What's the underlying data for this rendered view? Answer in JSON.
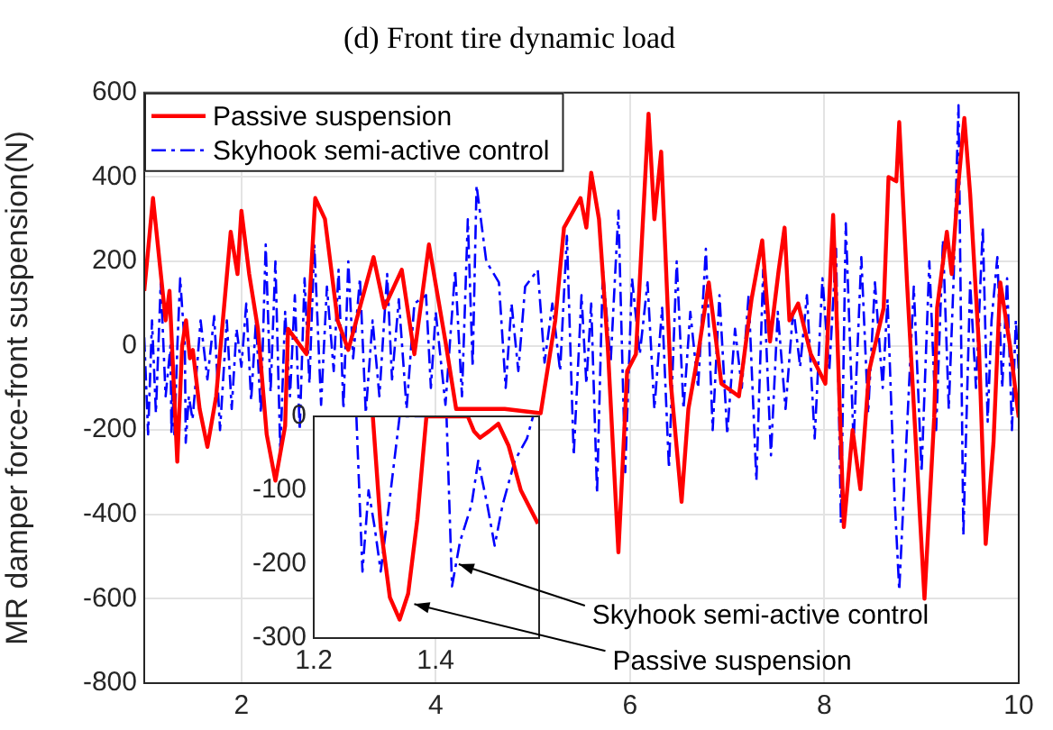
{
  "chart_data": [
    {
      "type": "line",
      "title": "(d) Front tire dynamic load",
      "ylabel": "MR damper force-front suspension(N)",
      "xlim": [
        1,
        10
      ],
      "ylim": [
        -800,
        600
      ],
      "xticks": [
        2,
        4,
        6,
        8,
        10
      ],
      "yticks": [
        -800,
        -600,
        -400,
        -200,
        0,
        200,
        400,
        600
      ],
      "grid": true,
      "legend": "top left",
      "series": [
        {
          "name": "Passive suspension",
          "color": "#ff0000",
          "line_style": "solid",
          "x": [
            1.0,
            1.09,
            1.22,
            1.26,
            1.34,
            1.39,
            1.43,
            1.47,
            1.5,
            1.57,
            1.65,
            1.74,
            1.89,
            1.96,
            2.0,
            2.08,
            2.17,
            2.26,
            2.35,
            2.45,
            2.48,
            2.67,
            2.76,
            2.86,
            2.99,
            3.1,
            3.23,
            3.36,
            3.47,
            3.65,
            3.78,
            3.93,
            4.1,
            4.21,
            4.43,
            4.71,
            5.08,
            5.23,
            5.32,
            5.49,
            5.55,
            5.6,
            5.68,
            5.77,
            5.88,
            5.97,
            6.06,
            6.19,
            6.25,
            6.32,
            6.42,
            6.53,
            6.6,
            6.7,
            6.81,
            6.94,
            7.12,
            7.25,
            7.36,
            7.44,
            7.53,
            7.59,
            7.64,
            7.73,
            7.86,
            8.01,
            8.09,
            8.2,
            8.29,
            8.37,
            8.46,
            8.61,
            8.66,
            8.74,
            8.77,
            8.85,
            9.03,
            9.13,
            9.16,
            9.26,
            9.31,
            9.37,
            9.44,
            9.5,
            9.59,
            9.66,
            9.74,
            9.81,
            9.91,
            10.0
          ],
          "values": [
            130,
            350,
            60,
            130,
            -275,
            0,
            60,
            -30,
            -10,
            -150,
            -240,
            -120,
            270,
            170,
            320,
            170,
            40,
            -210,
            -320,
            -190,
            40,
            -20,
            350,
            300,
            60,
            -10,
            100,
            210,
            90,
            180,
            -20,
            240,
            10,
            -150,
            null,
            -150,
            -160,
            60,
            280,
            350,
            280,
            410,
            300,
            0,
            -490,
            -60,
            -20,
            550,
            300,
            460,
            -90,
            -370,
            -150,
            -20,
            150,
            -90,
            -120,
            110,
            250,
            10,
            180,
            280,
            60,
            100,
            -20,
            -90,
            310,
            -430,
            -200,
            -340,
            -60,
            90,
            400,
            390,
            530,
            150,
            -600,
            -170,
            90,
            270,
            170,
            360,
            540,
            360,
            0,
            -470,
            -230,
            150,
            0,
            -170
          ]
        },
        {
          "name": "Skyhook semi-active control",
          "color": "#0000ff",
          "line_style": "dashed",
          "x": [
            1.0,
            1.04,
            1.08,
            1.12,
            1.17,
            1.22,
            1.27,
            1.28,
            1.29,
            1.31,
            1.341,
            1.37,
            1.39,
            1.418,
            1.427,
            1.459,
            1.497,
            1.55,
            1.58,
            1.65,
            1.72,
            1.78,
            1.85,
            1.9,
            1.95,
            2.0,
            2.05,
            2.1,
            2.15,
            2.2,
            2.25,
            2.3,
            2.35,
            2.4,
            2.45,
            2.5,
            2.55,
            2.6,
            2.65,
            2.7,
            2.75,
            2.82,
            2.88,
            2.95,
            3.0,
            3.05,
            3.1,
            3.15,
            3.22,
            3.28,
            3.35,
            3.42,
            3.5,
            3.55,
            3.62,
            3.7,
            3.78,
            3.85,
            3.9,
            3.95,
            4.0,
            4.1,
            4.2,
            4.27,
            4.33,
            4.38,
            4.42,
            4.47,
            4.52,
            4.58,
            4.65,
            4.72,
            4.78,
            4.85,
            4.92,
            5.0,
            5.05,
            5.12,
            5.2,
            5.28,
            5.35,
            5.42,
            5.5,
            5.55,
            5.6,
            5.66,
            5.72,
            5.8,
            5.88,
            5.95,
            6.02,
            6.1,
            6.18,
            6.25,
            6.33,
            6.4,
            6.48,
            6.55,
            6.62,
            6.7,
            6.78,
            6.85,
            6.92,
            7.0,
            7.08,
            7.15,
            7.22,
            7.3,
            7.37,
            7.45,
            7.52,
            7.6,
            7.68,
            7.75,
            7.82,
            7.9,
            7.98,
            8.05,
            8.12,
            8.17,
            8.22,
            8.3,
            8.38,
            8.45,
            8.52,
            8.6,
            8.65,
            8.72,
            8.77,
            8.92,
            9.0,
            9.08,
            9.15,
            9.22,
            9.28,
            9.33,
            9.38,
            9.43,
            9.5,
            9.56,
            9.63,
            9.68,
            9.72,
            9.78,
            9.83,
            9.88,
            9.93,
            9.97,
            10.0
          ],
          "values": [
            20,
            -210,
            60,
            -160,
            150,
            -120,
            0,
            -210,
            -100,
            -210,
            0,
            160,
            90,
            0,
            -230,
            -120,
            -175,
            -30,
            60,
            -80,
            70,
            -200,
            60,
            -150,
            40,
            -50,
            100,
            -130,
            60,
            -160,
            240,
            -110,
            200,
            -250,
            80,
            -120,
            120,
            -200,
            160,
            -90,
            240,
            -140,
            140,
            -60,
            180,
            -150,
            200,
            -30,
            160,
            -160,
            60,
            -120,
            170,
            -80,
            110,
            -150,
            100,
            null,
            120,
            -100,
            80,
            -140,
            180,
            -120,
            300,
            -50,
            380,
            null,
            200,
            null,
            150,
            -100,
            100,
            -60,
            140,
            null,
            180,
            -40,
            100,
            -60,
            260,
            -260,
            120,
            -90,
            100,
            -350,
            180,
            -40,
            320,
            -300,
            160,
            -20,
            150,
            -150,
            90,
            -290,
            200,
            -150,
            80,
            -100,
            230,
            -200,
            120,
            -210,
            40,
            -100,
            120,
            -320,
            180,
            -260,
            80,
            -150,
            90,
            -50,
            120,
            -220,
            160,
            -60,
            230,
            -420,
            290,
            -230,
            210,
            -160,
            150,
            -100,
            110,
            -350,
            -580,
            140,
            -300,
            200,
            -200,
            250,
            -150,
            160,
            570,
            -450,
            150,
            -100,
            280,
            -180,
            60,
            210,
            -100,
            160,
            -200,
            60,
            -60
          ]
        }
      ]
    },
    {
      "type": "line",
      "xlim": [
        1.2,
        1.57
      ],
      "ylim": [
        -300,
        0
      ],
      "xticks": [
        1.2,
        1.4
      ],
      "yticks": [
        -300,
        -200,
        -100,
        0
      ],
      "annotations": [
        {
          "text": "Skyhook semi-active control",
          "x": 1.438,
          "y": -200
        },
        {
          "text": "Passive suspension",
          "x": 1.365,
          "y": -254
        }
      ],
      "series": [
        {
          "color": "#ff0000",
          "line_style": "solid",
          "x": [
            1.297,
            1.31,
            1.325,
            1.341,
            1.355,
            1.37,
            1.385,
            1.453,
            1.463,
            1.473,
            1.488,
            1.503,
            1.52,
            1.54,
            1.568
          ],
          "values": [
            0,
            -150,
            -245,
            -275,
            -240,
            -140,
            0,
            0,
            -20,
            -29,
            -20,
            -10,
            -40,
            -100,
            -145
          ]
        },
        {
          "color": "#0000ff",
          "line_style": "dashed",
          "x": [
            1.27,
            1.28,
            1.29,
            1.3,
            1.31,
            1.325,
            1.341,
            1.418,
            1.427,
            1.44,
            1.459,
            1.47,
            1.485,
            1.497,
            1.51,
            1.53,
            1.55,
            1.56
          ],
          "values": [
            0,
            -210,
            -100,
            -150,
            -210,
            -110,
            0,
            0,
            -230,
            -170,
            -120,
            -60,
            -120,
            -175,
            -120,
            -60,
            -30,
            0
          ]
        }
      ]
    }
  ]
}
